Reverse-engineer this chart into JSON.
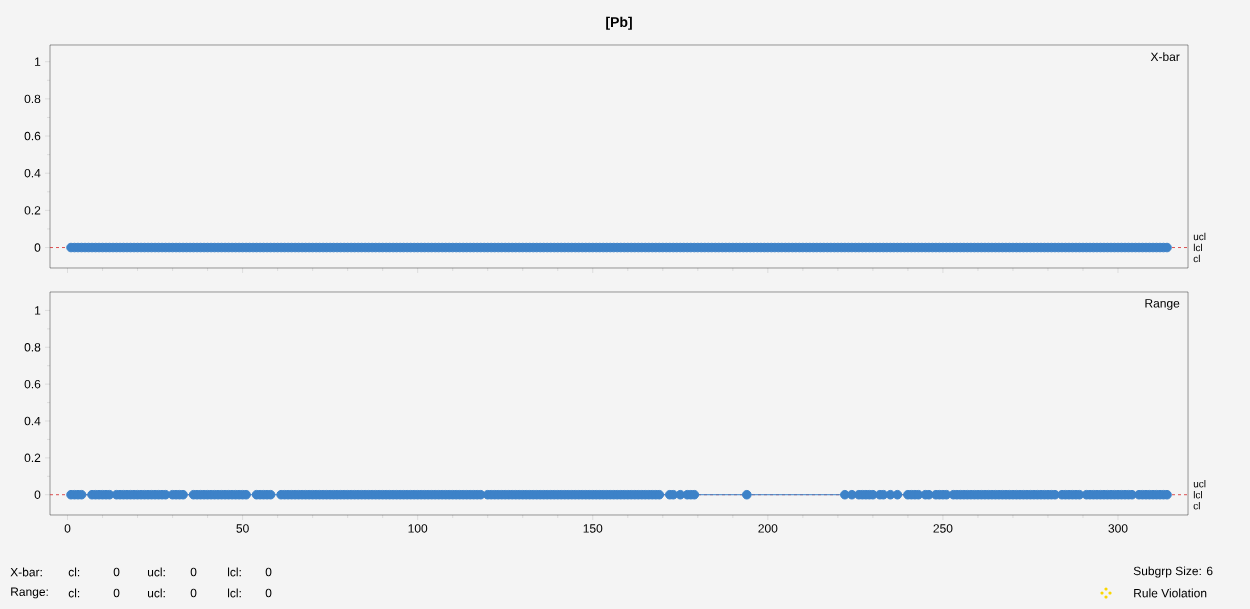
{
  "chart_data": [
    {
      "type": "scatter",
      "title": "[Pb]",
      "subtitle": "X-bar",
      "color": "#3d82c8",
      "marker": "circle",
      "annotations": [
        "ucl",
        "lcl"
      ],
      "x": [
        1,
        2,
        3,
        4,
        5,
        6,
        7,
        8,
        9,
        10,
        11,
        12,
        13,
        14,
        15,
        16,
        17,
        18,
        19,
        20,
        21,
        22,
        23,
        24,
        25,
        26,
        27,
        28,
        29,
        30,
        31,
        32,
        33,
        34,
        35,
        36,
        37,
        38,
        39,
        40,
        41,
        42,
        43,
        44,
        45,
        46,
        47,
        48,
        49,
        50,
        51,
        52,
        53,
        54,
        55,
        56,
        57,
        58,
        59,
        60,
        61,
        62,
        63,
        64,
        65,
        66,
        67,
        68,
        69,
        70,
        71,
        72,
        73,
        74,
        75,
        76,
        77,
        78,
        79,
        80,
        81,
        82,
        83,
        84,
        85,
        86,
        87,
        88,
        89,
        90,
        91,
        92,
        93,
        94,
        95,
        96,
        97,
        98,
        99,
        100,
        101,
        102,
        103,
        104,
        105,
        106,
        107,
        108,
        109,
        110,
        111,
        112,
        113,
        114,
        115,
        116,
        117,
        118,
        119,
        120,
        121,
        122,
        123,
        124,
        125,
        126,
        127,
        128,
        129,
        130,
        131,
        132,
        133,
        134,
        135,
        136,
        137,
        138,
        139,
        140,
        141,
        142,
        143,
        144,
        145,
        146,
        147,
        148,
        149,
        150,
        151,
        152,
        153,
        154,
        155,
        156,
        157,
        158,
        159,
        160,
        161,
        162,
        163,
        164,
        165,
        166,
        167,
        168,
        169,
        170,
        171,
        172,
        173,
        174,
        175,
        176,
        177,
        178,
        179,
        180,
        181,
        182,
        183,
        184,
        185,
        186,
        187,
        188,
        189,
        190,
        191,
        192,
        193,
        194,
        195,
        196,
        197,
        198,
        199,
        200,
        201,
        202,
        203,
        204,
        205,
        206,
        207,
        208,
        209,
        210,
        211,
        212,
        213,
        214,
        215,
        216,
        217,
        218,
        219,
        220,
        221,
        222,
        223,
        224,
        225,
        226,
        227,
        228,
        229,
        230,
        231,
        232,
        233,
        234,
        235,
        236,
        237,
        238,
        239,
        240,
        241,
        242,
        243,
        244,
        245,
        246,
        247,
        248,
        249,
        250,
        251,
        252,
        253,
        254,
        255,
        256,
        257,
        258,
        259,
        260,
        261,
        262,
        263,
        264,
        265,
        266,
        267,
        268,
        269,
        270,
        271,
        272,
        273,
        274,
        275,
        276,
        277,
        278,
        279,
        280,
        281,
        282,
        283,
        284,
        285,
        286,
        287,
        288,
        289,
        290,
        291,
        292,
        293,
        294,
        295,
        296,
        297,
        298,
        299,
        300,
        301,
        302,
        303,
        304,
        305,
        306,
        307,
        308,
        309,
        310,
        311,
        312,
        313,
        314
      ],
      "values": [
        0,
        0,
        0,
        0,
        0,
        0,
        0,
        0,
        0,
        0,
        0,
        0,
        0,
        0,
        0,
        0,
        0,
        0,
        0,
        0,
        0,
        0,
        0,
        0,
        0,
        0,
        0,
        0,
        0,
        0,
        0,
        0,
        0,
        0,
        0,
        0,
        0,
        0,
        0,
        0,
        0,
        0,
        0,
        0,
        0,
        0,
        0,
        0,
        0,
        0,
        0,
        0,
        0,
        0,
        0,
        0,
        0,
        0,
        0,
        0,
        0,
        0,
        0,
        0,
        0,
        0,
        0,
        0,
        0,
        0,
        0,
        0,
        0,
        0,
        0,
        0,
        0,
        0,
        0,
        0,
        0,
        0,
        0,
        0,
        0,
        0,
        0,
        0,
        0,
        0,
        0,
        0,
        0,
        0,
        0,
        0,
        0,
        0,
        0,
        0,
        0,
        0,
        0,
        0,
        0,
        0,
        0,
        0,
        0,
        0,
        0,
        0,
        0,
        0,
        0,
        0,
        0,
        0,
        0,
        0,
        0,
        0,
        0,
        0,
        0,
        0,
        0,
        0,
        0,
        0,
        0,
        0,
        0,
        0,
        0,
        0,
        0,
        0,
        0,
        0,
        0,
        0,
        0,
        0,
        0,
        0,
        0,
        0,
        0,
        0,
        0,
        0,
        0,
        0,
        0,
        0,
        0,
        0,
        0,
        0,
        0,
        0,
        0,
        0,
        0,
        0,
        0,
        0,
        0,
        0,
        0,
        0,
        0,
        0,
        0,
        0,
        0,
        0,
        0,
        0,
        0,
        0,
        0,
        0,
        0,
        0,
        0,
        0,
        0,
        0,
        0,
        0,
        0,
        0,
        0,
        0,
        0,
        0,
        0,
        0,
        0,
        0,
        0,
        0,
        0,
        0,
        0,
        0,
        0,
        0,
        0,
        0,
        0,
        0,
        0,
        0,
        0,
        0,
        0,
        0,
        0,
        0,
        0,
        0,
        0,
        0,
        0,
        0,
        0,
        0,
        0,
        0,
        0,
        0,
        0,
        0,
        0,
        0,
        0,
        0,
        0,
        0,
        0,
        0,
        0,
        0,
        0,
        0,
        0,
        0,
        0,
        0,
        0,
        0,
        0,
        0,
        0,
        0,
        0,
        0,
        0,
        0,
        0,
        0,
        0,
        0,
        0,
        0,
        0,
        0,
        0,
        0,
        0,
        0,
        0,
        0,
        0,
        0,
        0,
        0,
        0,
        0,
        0,
        0,
        0,
        0,
        0,
        0,
        0,
        0,
        0,
        0,
        0,
        0,
        0,
        0,
        0,
        0,
        0,
        0,
        0,
        0,
        0,
        0,
        0,
        0,
        0,
        0,
        0,
        0,
        0,
        0,
        0,
        0
      ],
      "xlim": [
        -5,
        320
      ],
      "ylim": [
        -0.11,
        1.09
      ],
      "xticks": [
        0,
        50,
        100,
        150,
        200,
        250,
        300
      ],
      "yticks": [
        0,
        0.2,
        0.4,
        0.6,
        0.8,
        1
      ],
      "tick_labels": "y",
      "ref_lines": [
        {
          "axis": "y",
          "value": 0,
          "label": "cl",
          "color": "#d62728",
          "line_style": "dashed"
        }
      ]
    },
    {
      "type": "line",
      "subtitle": "Range",
      "color": "#3d82c8",
      "marker": "circle",
      "line_style": "solid",
      "x": [
        1,
        2,
        3,
        4,
        7,
        8,
        9,
        10,
        11,
        12,
        14,
        15,
        16,
        17,
        18,
        19,
        20,
        21,
        22,
        23,
        24,
        25,
        26,
        27,
        28,
        30,
        31,
        32,
        33,
        36,
        37,
        38,
        39,
        40,
        41,
        42,
        43,
        44,
        45,
        46,
        47,
        48,
        49,
        50,
        51,
        54,
        55,
        56,
        57,
        58,
        61,
        62,
        63,
        64,
        65,
        66,
        67,
        68,
        69,
        70,
        71,
        72,
        73,
        74,
        75,
        76,
        77,
        78,
        79,
        80,
        81,
        82,
        83,
        84,
        85,
        86,
        87,
        88,
        89,
        90,
        91,
        92,
        93,
        94,
        95,
        96,
        97,
        98,
        99,
        100,
        101,
        102,
        103,
        104,
        105,
        106,
        107,
        108,
        109,
        110,
        111,
        112,
        113,
        114,
        115,
        116,
        117,
        118,
        120,
        121,
        122,
        123,
        124,
        125,
        126,
        127,
        128,
        129,
        130,
        131,
        132,
        133,
        134,
        135,
        136,
        137,
        138,
        139,
        140,
        141,
        142,
        143,
        144,
        145,
        146,
        147,
        148,
        149,
        150,
        151,
        152,
        153,
        154,
        155,
        156,
        157,
        158,
        159,
        160,
        161,
        162,
        163,
        164,
        165,
        166,
        167,
        168,
        169,
        172,
        173,
        175,
        177,
        178,
        179,
        194,
        222,
        224,
        226,
        227,
        228,
        229,
        230,
        232,
        233,
        235,
        237,
        240,
        241,
        242,
        243,
        245,
        246,
        248,
        249,
        250,
        251,
        253,
        254,
        255,
        256,
        257,
        258,
        259,
        260,
        261,
        262,
        263,
        264,
        265,
        266,
        267,
        268,
        269,
        270,
        271,
        272,
        273,
        274,
        275,
        276,
        277,
        278,
        279,
        280,
        281,
        282,
        284,
        285,
        286,
        287,
        288,
        289,
        291,
        292,
        293,
        294,
        295,
        296,
        297,
        298,
        299,
        300,
        301,
        302,
        303,
        304,
        306,
        307,
        308,
        309,
        310,
        311,
        312,
        313,
        314
      ],
      "values": [
        0,
        0,
        0,
        0,
        0,
        0,
        0,
        0,
        0,
        0,
        0,
        0,
        0,
        0,
        0,
        0,
        0,
        0,
        0,
        0,
        0,
        0,
        0,
        0,
        0,
        0,
        0,
        0,
        0,
        0,
        0,
        0,
        0,
        0,
        0,
        0,
        0,
        0,
        0,
        0,
        0,
        0,
        0,
        0,
        0,
        0,
        0,
        0,
        0,
        0,
        0,
        0,
        0,
        0,
        0,
        0,
        0,
        0,
        0,
        0,
        0,
        0,
        0,
        0,
        0,
        0,
        0,
        0,
        0,
        0,
        0,
        0,
        0,
        0,
        0,
        0,
        0,
        0,
        0,
        0,
        0,
        0,
        0,
        0,
        0,
        0,
        0,
        0,
        0,
        0,
        0,
        0,
        0,
        0,
        0,
        0,
        0,
        0,
        0,
        0,
        0,
        0,
        0,
        0,
        0,
        0,
        0,
        0,
        0,
        0,
        0,
        0,
        0,
        0,
        0,
        0,
        0,
        0,
        0,
        0,
        0,
        0,
        0,
        0,
        0,
        0,
        0,
        0,
        0,
        0,
        0,
        0,
        0,
        0,
        0,
        0,
        0,
        0,
        0,
        0,
        0,
        0,
        0,
        0,
        0,
        0,
        0,
        0,
        0,
        0,
        0,
        0,
        0,
        0,
        0,
        0,
        0,
        0,
        0,
        0,
        0,
        0,
        0,
        0,
        0,
        0,
        0,
        0,
        0,
        0,
        0,
        0,
        0,
        0,
        0,
        0,
        0,
        0,
        0,
        0,
        0,
        0,
        0,
        0,
        0,
        0,
        0,
        0,
        0,
        0,
        0,
        0,
        0,
        0,
        0,
        0,
        0,
        0,
        0,
        0,
        0,
        0,
        0,
        0,
        0,
        0,
        0,
        0,
        0,
        0,
        0,
        0,
        0,
        0,
        0,
        0,
        0,
        0,
        0,
        0,
        0,
        0,
        0,
        0,
        0,
        0,
        0,
        0,
        0,
        0,
        0,
        0,
        0,
        0,
        0,
        0,
        0,
        0,
        0,
        0,
        0,
        0,
        0,
        0,
        0
      ],
      "xlim": [
        -5,
        320
      ],
      "ylim": [
        -0.11,
        1.1
      ],
      "xticks": [
        0,
        50,
        100,
        150,
        200,
        250,
        300
      ],
      "yticks": [
        0,
        0.2,
        0.4,
        0.6,
        0.8,
        1
      ],
      "ref_lines": [
        {
          "axis": "y",
          "value": 0,
          "label": "cl",
          "color": "#d62728",
          "line_style": "dashed"
        }
      ],
      "annotations": [
        "ucl",
        "lcl",
        "X-bar:",
        "cl:",
        "0",
        "ucl:",
        "0",
        "lcl:",
        "0",
        "Range:",
        "cl:",
        "0",
        "ucl:",
        "0",
        "lcl:",
        "0",
        "Subgrp Size: 6",
        "Rule Violation"
      ]
    }
  ]
}
